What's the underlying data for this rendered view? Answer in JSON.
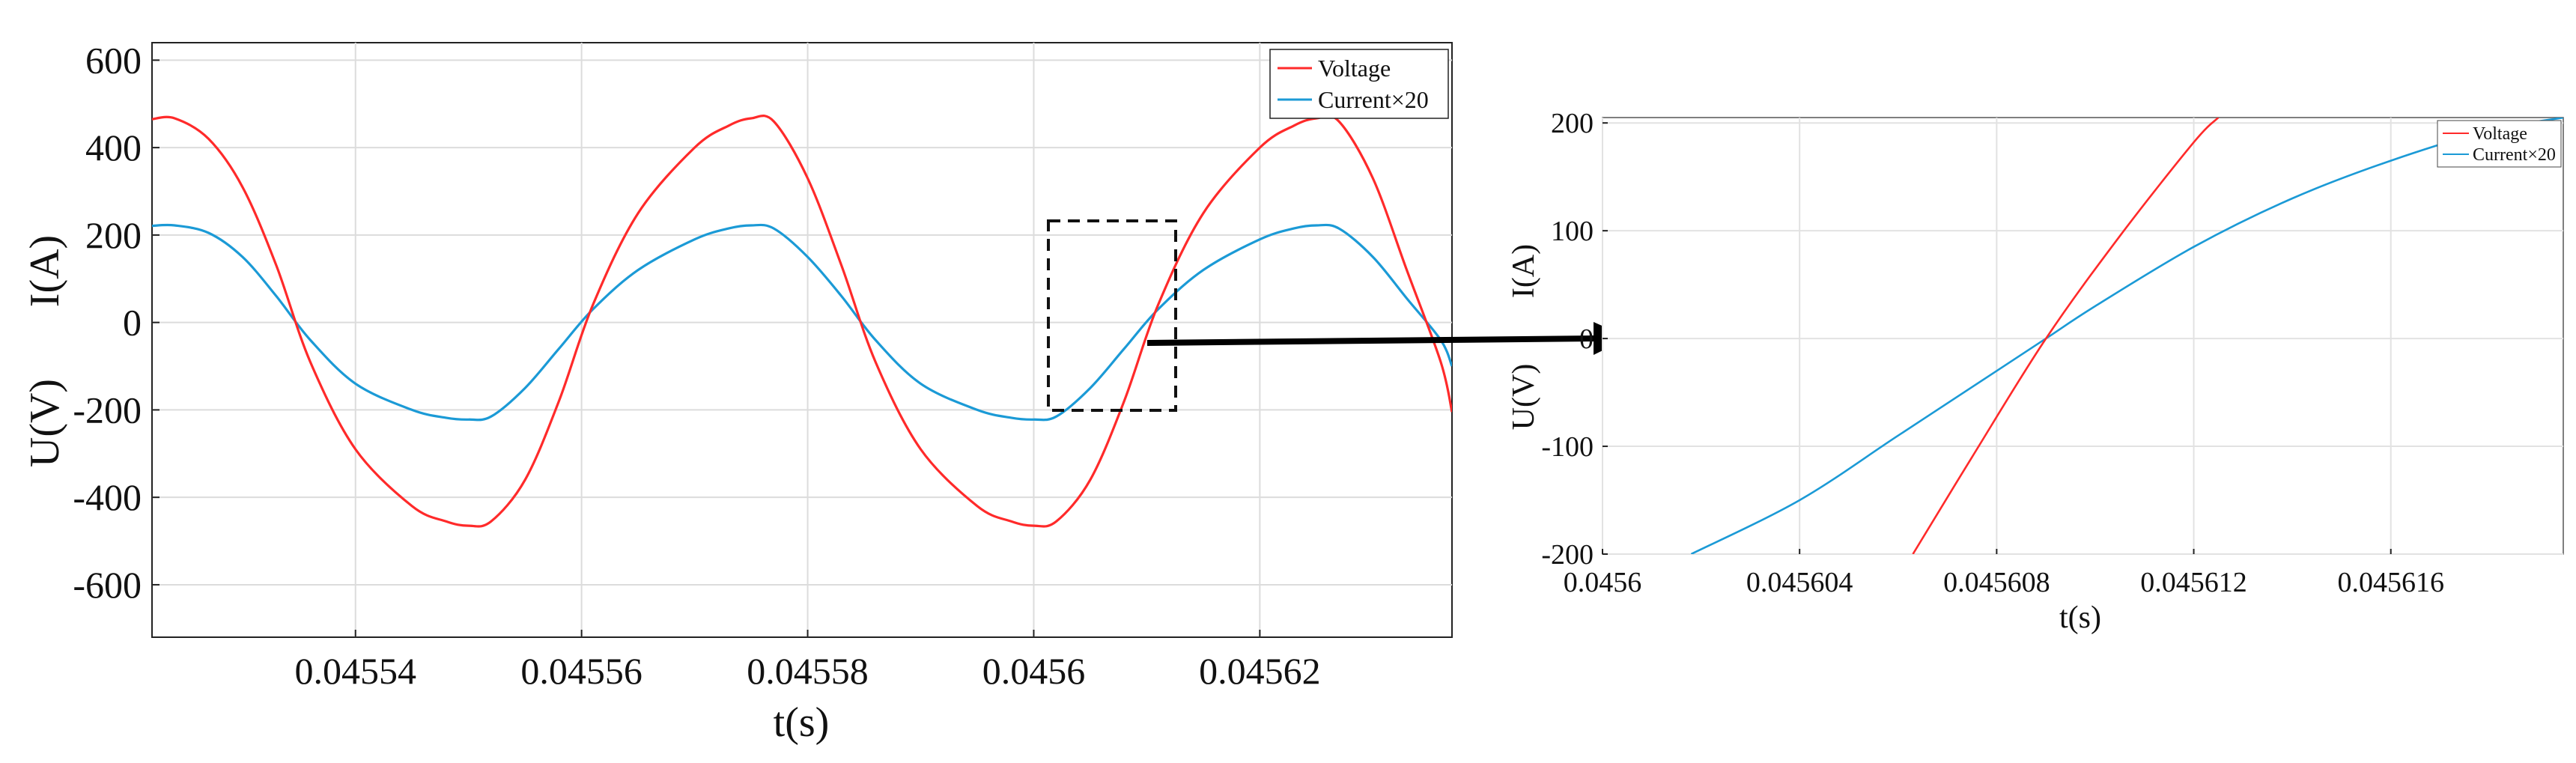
{
  "chart_data": [
    {
      "type": "line",
      "title": "",
      "xlabel": "t(s)",
      "ylabel_top": "I(A)",
      "ylabel_bottom": "U(V)",
      "xlim": [
        0.045522,
        0.045637
      ],
      "ylim": [
        -720,
        640
      ],
      "xticks": [
        0.04554,
        0.04556,
        0.04558,
        0.0456,
        0.04562
      ],
      "xtick_labels": [
        "0.04554",
        "0.04556",
        "0.04558",
        "0.0456",
        "0.04562"
      ],
      "yticks": [
        600,
        400,
        200,
        0,
        -200,
        -400,
        -600
      ],
      "ytick_labels": [
        "600",
        "400",
        "200",
        "0",
        "-200",
        "-400",
        "-600"
      ],
      "grid": true,
      "legend_position": "top-right",
      "series": [
        {
          "name": "Voltage",
          "color": "#ff2a2a",
          "x": [
            0.045522,
            0.045524,
            0.045527,
            0.04553,
            0.045533,
            0.045536,
            0.04554,
            0.045545,
            0.045548,
            0.04555,
            0.045552,
            0.045555,
            0.045558,
            0.045561,
            0.045565,
            0.04557,
            0.045573,
            0.045575,
            0.045577,
            0.04558,
            0.045583,
            0.045586,
            0.04559,
            0.045595,
            0.045598,
            0.0456,
            0.045602,
            0.045605,
            0.045608,
            0.045611,
            0.045615,
            0.04562,
            0.045623,
            0.045625,
            0.045627,
            0.04563,
            0.045633,
            0.045636,
            0.045637
          ],
          "y": [
            465,
            467,
            420,
            310,
            130,
            -90,
            -290,
            -420,
            -455,
            -465,
            -455,
            -360,
            -180,
            40,
            250,
            400,
            450,
            467,
            460,
            330,
            130,
            -90,
            -290,
            -420,
            -455,
            -465,
            -455,
            -360,
            -180,
            40,
            250,
            400,
            450,
            467,
            460,
            330,
            120,
            -90,
            -205
          ]
        },
        {
          "name": "Current×20",
          "color": "#1b9ad6",
          "x": [
            0.045522,
            0.045524,
            0.045527,
            0.04553,
            0.045533,
            0.045536,
            0.04554,
            0.045545,
            0.045548,
            0.04555,
            0.045552,
            0.045555,
            0.045558,
            0.045561,
            0.045565,
            0.04557,
            0.045573,
            0.045575,
            0.045577,
            0.04558,
            0.045583,
            0.045586,
            0.04559,
            0.045595,
            0.045598,
            0.0456,
            0.045602,
            0.045605,
            0.045608,
            0.045611,
            0.045615,
            0.04562,
            0.045623,
            0.045625,
            0.045627,
            0.04563,
            0.045633,
            0.045636,
            0.045637
          ],
          "y": [
            221,
            222,
            205,
            150,
            60,
            -40,
            -140,
            -200,
            -218,
            -222,
            -215,
            -150,
            -60,
            30,
            120,
            190,
            215,
            222,
            215,
            150,
            60,
            -40,
            -140,
            -200,
            -218,
            -222,
            -215,
            -150,
            -60,
            30,
            120,
            190,
            215,
            222,
            215,
            150,
            55,
            -40,
            -100
          ]
        }
      ]
    },
    {
      "type": "line",
      "title": "",
      "xlabel": "t(s)",
      "ylabel_top": "I(A)",
      "ylabel_bottom": "U(V)",
      "xlim": [
        0.0456,
        0.0456195
      ],
      "ylim": [
        -200,
        205
      ],
      "xticks": [
        0.0456,
        0.045604,
        0.045608,
        0.045612,
        0.045616
      ],
      "xtick_labels": [
        "0.0456",
        "0.045604",
        "0.045608",
        "0.045612",
        "0.045616"
      ],
      "yticks": [
        200,
        100,
        0,
        -100,
        -200
      ],
      "ytick_labels": [
        "200",
        "100",
        "0",
        "-100",
        "-200"
      ],
      "grid": true,
      "legend_position": "top-right",
      "series": [
        {
          "name": "Voltage",
          "color": "#ff2a2a",
          "x": [
            0.0456063,
            0.0456075,
            0.045609,
            0.0456105,
            0.045612,
            0.0456125
          ],
          "y": [
            -200,
            -110,
            0,
            95,
            182,
            205
          ]
        },
        {
          "name": "Current×20",
          "color": "#1b9ad6",
          "x": [
            0.0456018,
            0.045604,
            0.045606,
            0.045608,
            0.045609,
            0.04561,
            0.045612,
            0.045614,
            0.045616,
            0.045618,
            0.0456195
          ],
          "y": [
            -200,
            -150,
            -90,
            -30,
            0,
            30,
            85,
            130,
            165,
            193,
            205
          ]
        }
      ]
    }
  ]
}
